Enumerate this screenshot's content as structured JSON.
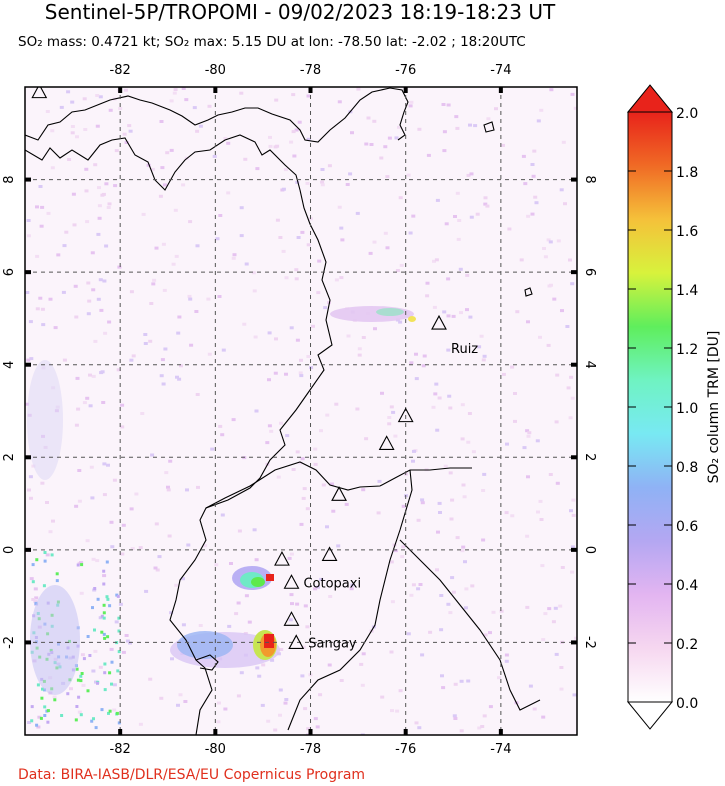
{
  "header": {
    "title": "Sentinel-5P/TROPOMI - 09/02/2023 18:19-18:23 UT",
    "subtitle": "SO₂ mass: 0.4721 kt; SO₂ max: 5.15 DU at lon: -78.50 lat: -2.02 ; 18:20UTC"
  },
  "map": {
    "lon_range": [
      -84,
      -72.4
    ],
    "lat_range": [
      -4,
      10
    ],
    "lon_ticks": [
      -82,
      -80,
      -78,
      -76,
      -74
    ],
    "lat_ticks": [
      -2,
      0,
      2,
      4,
      6,
      8
    ],
    "lon_tick_labels": [
      "-82",
      "-80",
      "-78",
      "-76",
      "-74"
    ],
    "lat_tick_labels": [
      "-2",
      "0",
      "2",
      "4",
      "6",
      "8"
    ],
    "grid": true
  },
  "volcanoes": [
    {
      "name": "Ruiz",
      "lon": -75.3,
      "lat": 4.9,
      "labeled": true
    },
    {
      "name": "",
      "lon": -76.0,
      "lat": 2.9,
      "labeled": false
    },
    {
      "name": "",
      "lon": -76.4,
      "lat": 2.3,
      "labeled": false
    },
    {
      "name": "",
      "lon": -77.4,
      "lat": 1.2,
      "labeled": false
    },
    {
      "name": "",
      "lon": -78.6,
      "lat": -0.2,
      "labeled": false
    },
    {
      "name": "",
      "lon": -77.6,
      "lat": -0.1,
      "labeled": false
    },
    {
      "name": "Cotopaxi",
      "lon": -78.4,
      "lat": -0.7,
      "labeled": true
    },
    {
      "name": "",
      "lon": -78.4,
      "lat": -1.5,
      "labeled": false
    },
    {
      "name": "Sangay",
      "lon": -78.3,
      "lat": -2.0,
      "labeled": true
    },
    {
      "name": "",
      "lon": -83.7,
      "lat": 9.9,
      "labeled": false
    }
  ],
  "colorbar": {
    "label": "SO₂ column TRM [DU]",
    "min": 0.0,
    "max": 2.0,
    "ticks": [
      0.0,
      0.2,
      0.4,
      0.6,
      0.8,
      1.0,
      1.2,
      1.4,
      1.6,
      1.8,
      2.0
    ],
    "tick_labels": [
      "0.0",
      "0.2",
      "0.4",
      "0.6",
      "0.8",
      "1.0",
      "1.2",
      "1.4",
      "1.6",
      "1.8",
      "2.0"
    ],
    "colors": [
      "#ffffff",
      "#f6d7f0",
      "#e3b5f1",
      "#b4a7f2",
      "#8fb2f5",
      "#78e9f3",
      "#6ff3c2",
      "#5fee5c",
      "#d8f23c",
      "#f5c13a",
      "#f06a25",
      "#e8231b"
    ]
  },
  "credit": "Data: BIRA-IASB/DLR/ESA/EU Copernicus Program"
}
